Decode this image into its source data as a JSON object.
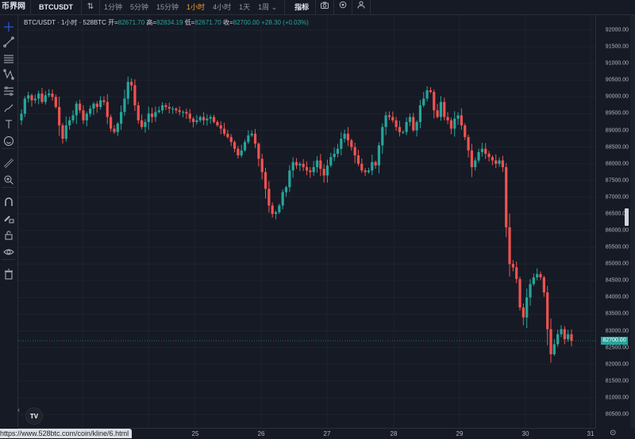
{
  "topbar": {
    "brand": "币界网",
    "symbol": "BTCUSDT",
    "compare_icon": "⇅",
    "intervals": [
      {
        "label": "1分钟",
        "active": false
      },
      {
        "label": "5分钟",
        "active": false
      },
      {
        "label": "15分钟",
        "active": false
      },
      {
        "label": "1小时",
        "active": true
      },
      {
        "label": "4小时",
        "active": false
      },
      {
        "label": "1天",
        "active": false
      },
      {
        "label": "1周 ⌄",
        "active": false
      }
    ],
    "indicators_label": "指标",
    "icons": [
      "camera-icon",
      "settings-icon",
      "user-icon"
    ]
  },
  "legend": {
    "title": "BTC/USDT · 1小时 · 528BTC",
    "open_label": "开=",
    "open": "82671.70",
    "high_label": "高=",
    "high": "82834.19",
    "low_label": "低=",
    "low": "82671.70",
    "close_label": "收=",
    "close": "82700.00",
    "change": "+28.30 (+0.03%)"
  },
  "left_tools": [
    "crosshair-icon",
    "trend-line-icon",
    "fib-icon",
    "pattern-icon",
    "projection-icon",
    "brush-icon",
    "text-icon",
    "emoji-icon",
    "ruler-icon",
    "zoom-in-icon",
    "magnet-icon",
    "lock-draw-icon",
    "lock-icon",
    "eye-icon",
    "trash-icon"
  ],
  "current_price": "82700.00",
  "url_tooltip": "https://www.528btc.com/coin/kline/6.html",
  "colors": {
    "up": "#26a69a",
    "down": "#ef5350",
    "background": "#161a25",
    "grid": "#1f2330"
  },
  "chart_data": {
    "type": "candlestick",
    "title": "BTC/USDT · 1小时 · 528BTC",
    "xlabel": "",
    "ylabel": "",
    "x_ticks": [
      "25",
      "26",
      "27",
      "28",
      "29",
      "30",
      "31"
    ],
    "y_ticks": [
      "92000.00",
      "91500.00",
      "91000.00",
      "90500.00",
      "90000.00",
      "89500.00",
      "89000.00",
      "88500.00",
      "88000.00",
      "87500.00",
      "87000.00",
      "86500.00",
      "86000.00",
      "85500.00",
      "85000.00",
      "84500.00",
      "84000.00",
      "83500.00",
      "83000.00",
      "82500.00",
      "82000.00",
      "81500.00",
      "81000.00",
      "80500.00"
    ],
    "ylim": [
      80300,
      92300
    ],
    "grid": true,
    "last": {
      "open": 82671.7,
      "high": 82834.19,
      "low": 82671.7,
      "close": 82700.0,
      "change": 28.3,
      "change_pct": 0.03
    },
    "closes": [
      89500,
      89950,
      90050,
      89900,
      89950,
      90100,
      89850,
      90050,
      90100,
      90000,
      89700,
      89150,
      88750,
      89150,
      89300,
      89450,
      89800,
      89600,
      89300,
      89500,
      89650,
      89800,
      89700,
      89900,
      89850,
      89400,
      89050,
      88950,
      89200,
      89550,
      89950,
      90450,
      90350,
      89750,
      89300,
      89100,
      89250,
      89500,
      89400,
      89550,
      89600,
      89750,
      89700,
      89650,
      89650,
      89600,
      89550,
      89550,
      89500,
      89350,
      89250,
      89300,
      89400,
      89300,
      89350,
      89400,
      89250,
      89150,
      89050,
      88900,
      88800,
      88650,
      88450,
      88250,
      88400,
      88650,
      88850,
      88900,
      88600,
      88150,
      87750,
      87250,
      86750,
      86500,
      86550,
      86750,
      87150,
      87300,
      87800,
      88050,
      87950,
      88000,
      87900,
      87800,
      87750,
      87900,
      88100,
      87850,
      87650,
      87950,
      88200,
      88300,
      88450,
      88750,
      88900,
      88700,
      88500,
      88250,
      88000,
      87800,
      87750,
      87800,
      88050,
      87950,
      88550,
      89100,
      89450,
      89400,
      89300,
      89100,
      88950,
      88950,
      89250,
      89400,
      89000,
      89250,
      89750,
      89950,
      90200,
      90150,
      89600,
      89400,
      89850,
      89400,
      89300,
      89050,
      89350,
      89450,
      89150,
      88800,
      88400,
      87900,
      88100,
      88350,
      88450,
      88300,
      88200,
      88100,
      88000,
      88100,
      87900,
      86100,
      85000,
      84900,
      84550,
      83700,
      83400,
      84000,
      84400,
      84600,
      84700,
      84600,
      84150,
      83050,
      82300,
      82600,
      82900,
      83050,
      82750,
      82900,
      82700
    ]
  }
}
